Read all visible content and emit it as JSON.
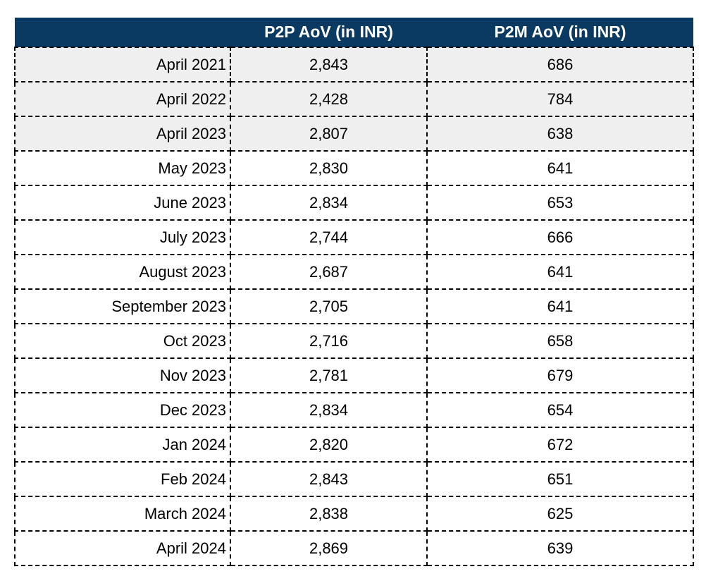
{
  "chart_data": {
    "type": "table",
    "title": "",
    "categories": [
      "April 2021",
      "April 2022",
      "April 2023",
      "May 2023",
      "June 2023",
      "July 2023",
      "August 2023",
      "September 2023",
      "Oct 2023",
      "Nov 2023",
      "Dec 2023",
      "Jan 2024",
      "Feb 2024",
      "March 2024",
      "April 2024"
    ],
    "series": [
      {
        "name": "P2P AoV (in INR)",
        "values": [
          2843,
          2428,
          2807,
          2830,
          2834,
          2744,
          2687,
          2705,
          2716,
          2781,
          2834,
          2820,
          2843,
          2838,
          2869
        ]
      },
      {
        "name": "P2M AoV (in INR)",
        "values": [
          686,
          784,
          638,
          641,
          653,
          666,
          641,
          641,
          658,
          679,
          654,
          672,
          651,
          625,
          639
        ]
      }
    ],
    "layout_hints": {
      "highlighted_rows": [
        "April 2021",
        "April 2022",
        "April 2023"
      ],
      "header_style": "dark-navy",
      "grid": "dashed"
    }
  },
  "table": {
    "header": {
      "period": "",
      "p2p": "P2P AoV (in INR)",
      "p2m": "P2M AoV (in INR)"
    },
    "rows": [
      {
        "period": "April 2021",
        "p2p": "2,843",
        "p2m": "686"
      },
      {
        "period": "April 2022",
        "p2p": "2,428",
        "p2m": "784"
      },
      {
        "period": "April 2023",
        "p2p": "2,807",
        "p2m": "638"
      },
      {
        "period": "May 2023",
        "p2p": "2,830",
        "p2m": "641"
      },
      {
        "period": "June 2023",
        "p2p": "2,834",
        "p2m": "653"
      },
      {
        "period": "July 2023",
        "p2p": "2,744",
        "p2m": "666"
      },
      {
        "period": "August 2023",
        "p2p": "2,687",
        "p2m": "641"
      },
      {
        "period": "September 2023",
        "p2p": "2,705",
        "p2m": "641"
      },
      {
        "period": "Oct 2023",
        "p2p": "2,716",
        "p2m": "658"
      },
      {
        "period": "Nov 2023",
        "p2p": "2,781",
        "p2m": "679"
      },
      {
        "period": "Dec 2023",
        "p2p": "2,834",
        "p2m": "654"
      },
      {
        "period": "Jan 2024",
        "p2p": "2,820",
        "p2m": "672"
      },
      {
        "period": "Feb 2024",
        "p2p": "2,843",
        "p2m": "651"
      },
      {
        "period": "March 2024",
        "p2p": "2,838",
        "p2m": "625"
      },
      {
        "period": "April 2024",
        "p2p": "2,869",
        "p2m": "639"
      }
    ]
  },
  "colors": {
    "header_bg": "#0a3a62",
    "header_text": "#ffffff",
    "shaded_row_bg": "#efefef",
    "border": "#000000"
  }
}
